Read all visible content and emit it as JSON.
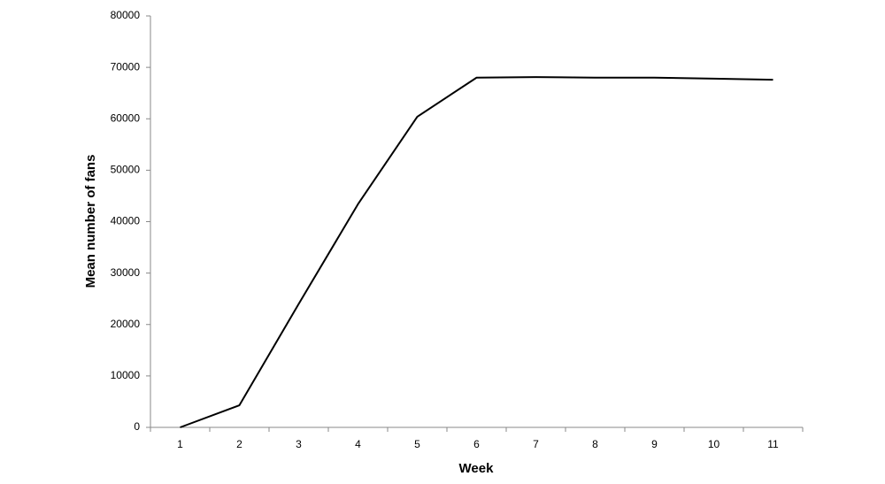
{
  "chart_data": {
    "type": "line",
    "x_label": "Week",
    "y_label": "Mean number of fans",
    "categories": [
      "1",
      "2",
      "3",
      "4",
      "5",
      "6",
      "7",
      "8",
      "9",
      "10",
      "11"
    ],
    "series": [
      {
        "name": "Mean number of fans",
        "color": "#000000",
        "values": [
          0,
          4300,
          24000,
          43400,
          60400,
          68000,
          68100,
          68000,
          68000,
          67800,
          67600
        ]
      }
    ],
    "ylim": [
      0,
      80000
    ],
    "yticks": [
      0,
      10000,
      20000,
      30000,
      40000,
      50000,
      60000,
      70000,
      80000
    ],
    "grid": false
  }
}
